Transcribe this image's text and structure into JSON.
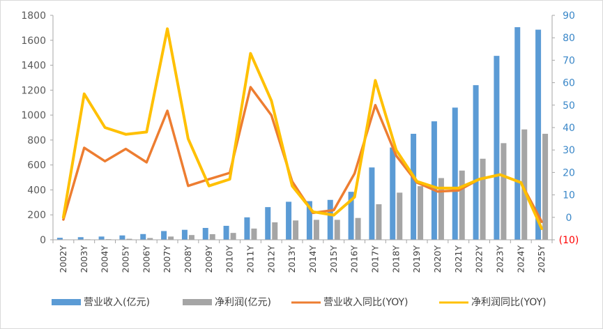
{
  "chart_data": {
    "type": "bar+line",
    "categories": [
      "2002Y",
      "2003Y",
      "2004Y",
      "2005Y",
      "2006Y",
      "2007Y",
      "2008Y",
      "2009Y",
      "2010Y",
      "2011Y",
      "2012Y",
      "2013Y",
      "2014Y",
      "2015Y",
      "2016Y",
      "2017Y",
      "2018Y",
      "2019Y",
      "2020Y",
      "2021Y",
      "2022Y",
      "2023Y",
      "2024Y",
      "2025Y"
    ],
    "left_axis": {
      "min": 0,
      "max": 1800,
      "step": 200,
      "ticks": [
        "0",
        "200",
        "400",
        "600",
        "800",
        "1000",
        "1200",
        "1400",
        "1600",
        "1800"
      ]
    },
    "right_axis": {
      "min": -10,
      "max": 90,
      "step": 10,
      "ticks": [
        "(10)",
        "0",
        "10",
        "20",
        "30",
        "40",
        "50",
        "60",
        "70",
        "80",
        "90"
      ]
    },
    "series": [
      {
        "name": "营业收入(亿元)",
        "type": "bar",
        "axis": "left",
        "color": "#5b9bd5",
        "values": [
          16,
          21,
          26,
          35,
          46,
          70,
          80,
          95,
          112,
          180,
          262,
          305,
          310,
          320,
          385,
          580,
          740,
          850,
          950,
          1060,
          1240,
          1475,
          1705,
          1685
        ]
      },
      {
        "name": "净利润(亿元)",
        "type": "bar",
        "axis": "left",
        "color": "#a5a5a5",
        "values": [
          3,
          4,
          5,
          8,
          14,
          26,
          38,
          45,
          55,
          90,
          140,
          155,
          160,
          160,
          175,
          285,
          378,
          430,
          495,
          555,
          650,
          775,
          885,
          850
        ]
      },
      {
        "name": "营业收入同比(YOY)",
        "type": "line",
        "axis": "right",
        "color": "#ed7d31",
        "values": [
          -1,
          31,
          25,
          30.5,
          24.5,
          47.5,
          14,
          17,
          19.8,
          58,
          45.5,
          16,
          2,
          3.2,
          19.5,
          50,
          27.5,
          15.5,
          11.5,
          12,
          17,
          19,
          15.5,
          -2
        ]
      },
      {
        "name": "净利润同比(YOY)",
        "type": "line",
        "axis": "right",
        "color": "#ffc000",
        "values": [
          0,
          55,
          40,
          37,
          38,
          84,
          35,
          14,
          17,
          73,
          52,
          14,
          2.5,
          1,
          9,
          61,
          30,
          16,
          13,
          13,
          17,
          19,
          15.5,
          -5
        ]
      }
    ]
  },
  "legend": {
    "revenue": "营业收入(亿元)",
    "profit": "净利润(亿元)",
    "revenue_yoy": "营业收入同比(YOY)",
    "profit_yoy": "净利润同比(YOY)"
  }
}
